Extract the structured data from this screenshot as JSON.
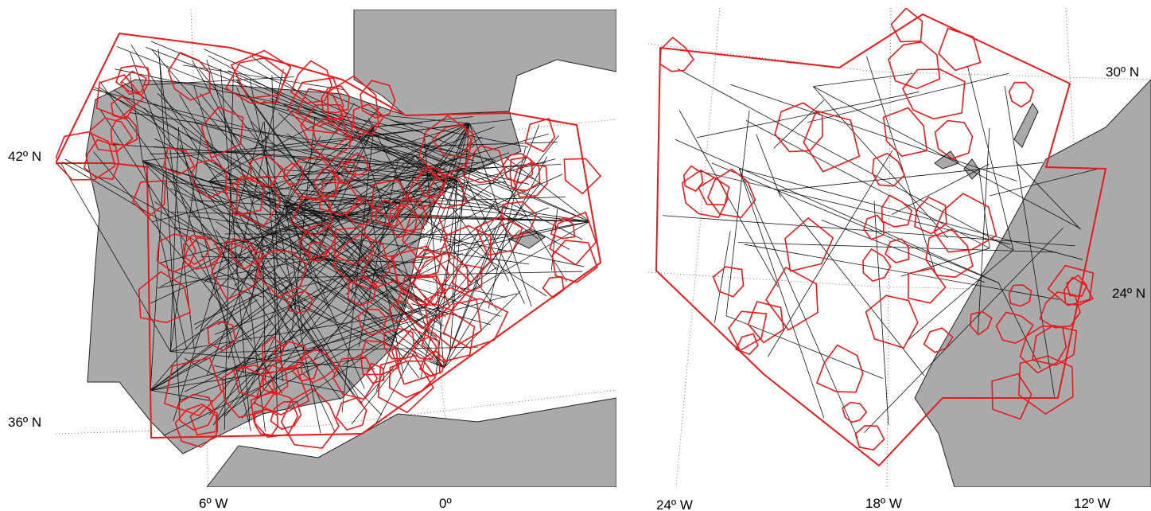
{
  "panels": [
    {
      "lat_labels": [
        "42º N",
        "36º N"
      ],
      "lon_labels": [
        "6º W",
        "0º"
      ]
    },
    {
      "lat_labels": [
        "30º N",
        "24º N"
      ],
      "lon_labels": [
        "24º W",
        "18º W",
        "12º W"
      ]
    }
  ]
}
